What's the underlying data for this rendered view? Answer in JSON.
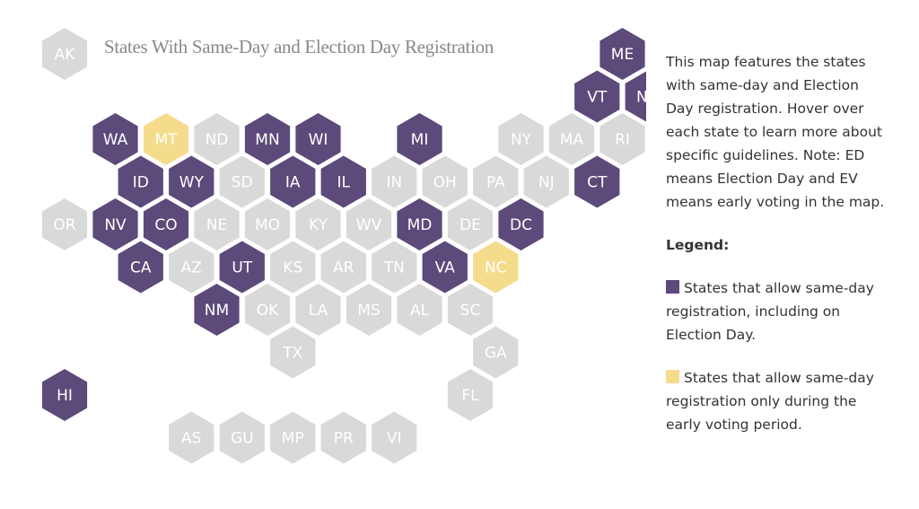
{
  "title": "States With Same-Day and Election Day Registration",
  "description": "This map features the states with same-day and Election Day registration. Hover over each state to learn more about specific guidelines. Note: ED means Election Day and EV means early voting in the map.",
  "legend": {
    "title": "Legend:",
    "items": [
      {
        "key": "same_day",
        "label": "States that allow same-day registration, including on Election Day."
      },
      {
        "key": "ev_only",
        "label": "States that allow same-day registration only during the early voting period."
      }
    ]
  },
  "colors": {
    "same_day": "#5c4a7a",
    "ev_only": "#f5dc8c",
    "none": "#d9d9d9"
  },
  "states": [
    {
      "code": "AK",
      "status": "none",
      "col": 0,
      "row": 0
    },
    {
      "code": "ME",
      "status": "same_day",
      "col": 11,
      "row": 0
    },
    {
      "code": "VT",
      "status": "same_day",
      "col": 10,
      "row": 1
    },
    {
      "code": "NH",
      "status": "same_day",
      "col": 11,
      "row": 1
    },
    {
      "code": "WA",
      "status": "same_day",
      "col": 1,
      "row": 2
    },
    {
      "code": "MT",
      "status": "ev_only",
      "col": 2,
      "row": 2
    },
    {
      "code": "ND",
      "status": "none",
      "col": 3,
      "row": 2
    },
    {
      "code": "MN",
      "status": "same_day",
      "col": 4,
      "row": 2
    },
    {
      "code": "WI",
      "status": "same_day",
      "col": 5,
      "row": 2
    },
    {
      "code": "MI",
      "status": "same_day",
      "col": 7,
      "row": 2
    },
    {
      "code": "NY",
      "status": "none",
      "col": 9,
      "row": 2
    },
    {
      "code": "MA",
      "status": "none",
      "col": 10,
      "row": 2
    },
    {
      "code": "RI",
      "status": "none",
      "col": 11,
      "row": 2
    },
    {
      "code": "ID",
      "status": "same_day",
      "col": 1,
      "row": 3
    },
    {
      "code": "WY",
      "status": "same_day",
      "col": 2,
      "row": 3
    },
    {
      "code": "SD",
      "status": "none",
      "col": 3,
      "row": 3
    },
    {
      "code": "IA",
      "status": "same_day",
      "col": 4,
      "row": 3
    },
    {
      "code": "IL",
      "status": "same_day",
      "col": 5,
      "row": 3
    },
    {
      "code": "IN",
      "status": "none",
      "col": 6,
      "row": 3
    },
    {
      "code": "OH",
      "status": "none",
      "col": 7,
      "row": 3
    },
    {
      "code": "PA",
      "status": "none",
      "col": 8,
      "row": 3
    },
    {
      "code": "NJ",
      "status": "none",
      "col": 9,
      "row": 3
    },
    {
      "code": "CT",
      "status": "same_day",
      "col": 10,
      "row": 3
    },
    {
      "code": "OR",
      "status": "none",
      "col": 0,
      "row": 4
    },
    {
      "code": "NV",
      "status": "same_day",
      "col": 1,
      "row": 4
    },
    {
      "code": "CO",
      "status": "same_day",
      "col": 2,
      "row": 4
    },
    {
      "code": "NE",
      "status": "none",
      "col": 3,
      "row": 4
    },
    {
      "code": "MO",
      "status": "none",
      "col": 4,
      "row": 4
    },
    {
      "code": "KY",
      "status": "none",
      "col": 5,
      "row": 4
    },
    {
      "code": "WV",
      "status": "none",
      "col": 6,
      "row": 4
    },
    {
      "code": "MD",
      "status": "same_day",
      "col": 7,
      "row": 4
    },
    {
      "code": "DE",
      "status": "none",
      "col": 8,
      "row": 4
    },
    {
      "code": "DC",
      "status": "same_day",
      "col": 9,
      "row": 4
    },
    {
      "code": "CA",
      "status": "same_day",
      "col": 1,
      "row": 5
    },
    {
      "code": "AZ",
      "status": "none",
      "col": 2,
      "row": 5
    },
    {
      "code": "UT",
      "status": "same_day",
      "col": 3,
      "row": 5
    },
    {
      "code": "KS",
      "status": "none",
      "col": 4,
      "row": 5
    },
    {
      "code": "AR",
      "status": "none",
      "col": 5,
      "row": 5
    },
    {
      "code": "TN",
      "status": "none",
      "col": 6,
      "row": 5
    },
    {
      "code": "VA",
      "status": "same_day",
      "col": 7,
      "row": 5
    },
    {
      "code": "NC",
      "status": "ev_only",
      "col": 8,
      "row": 5
    },
    {
      "code": "NM",
      "status": "same_day",
      "col": 3,
      "row": 6
    },
    {
      "code": "OK",
      "status": "none",
      "col": 4,
      "row": 6
    },
    {
      "code": "LA",
      "status": "none",
      "col": 5,
      "row": 6
    },
    {
      "code": "MS",
      "status": "none",
      "col": 6,
      "row": 6
    },
    {
      "code": "AL",
      "status": "none",
      "col": 7,
      "row": 6
    },
    {
      "code": "SC",
      "status": "none",
      "col": 8,
      "row": 6
    },
    {
      "code": "TX",
      "status": "none",
      "col": 4,
      "row": 7
    },
    {
      "code": "GA",
      "status": "none",
      "col": 8,
      "row": 7
    },
    {
      "code": "HI",
      "status": "same_day",
      "col": 0,
      "row": 8
    },
    {
      "code": "FL",
      "status": "none",
      "col": 8,
      "row": 8
    },
    {
      "code": "AS",
      "status": "none",
      "col": 2,
      "row": 9
    },
    {
      "code": "GU",
      "status": "none",
      "col": 3,
      "row": 9
    },
    {
      "code": "MP",
      "status": "none",
      "col": 4,
      "row": 9
    },
    {
      "code": "PR",
      "status": "none",
      "col": 5,
      "row": 9
    },
    {
      "code": "VI",
      "status": "none",
      "col": 6,
      "row": 9
    }
  ]
}
